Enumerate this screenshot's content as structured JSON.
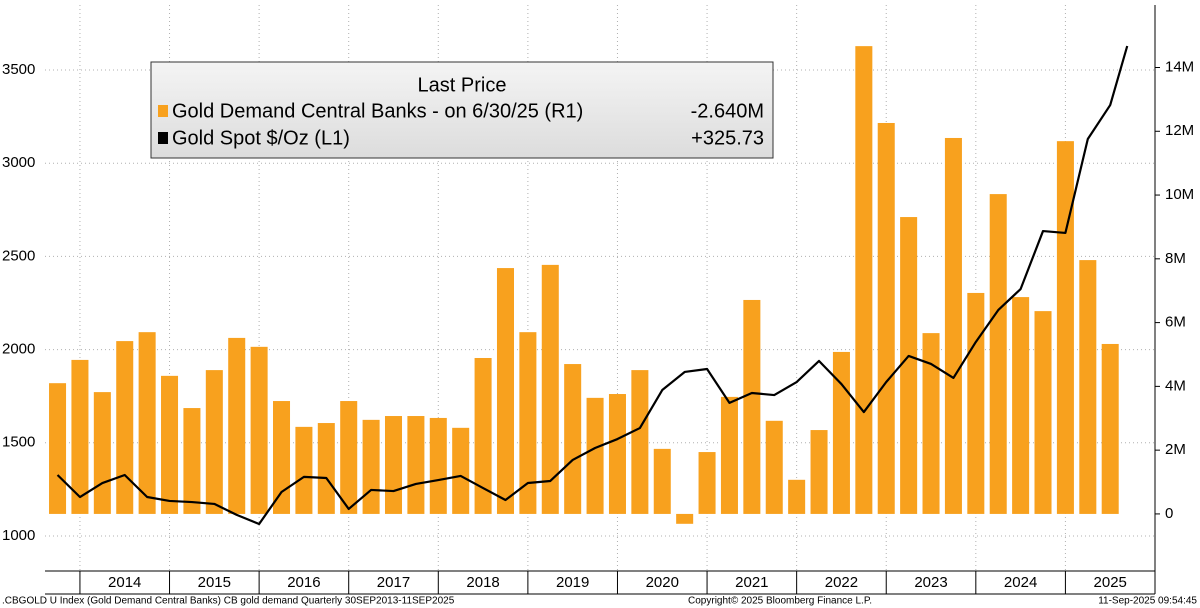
{
  "chart_data": {
    "type": "bar-line",
    "legend_title": "Last Price",
    "x": [
      2013.75,
      2014,
      2014.25,
      2014.5,
      2014.75,
      2015,
      2015.25,
      2015.5,
      2015.75,
      2016,
      2016.25,
      2016.5,
      2016.75,
      2017,
      2017.25,
      2017.5,
      2017.75,
      2018,
      2018.25,
      2018.5,
      2018.75,
      2019,
      2019.25,
      2019.5,
      2019.75,
      2020,
      2020.25,
      2020.5,
      2020.75,
      2021,
      2021.25,
      2021.5,
      2021.75,
      2022,
      2022.25,
      2022.5,
      2022.75,
      2023,
      2023.25,
      2023.5,
      2023.75,
      2024,
      2024.25,
      2024.5,
      2024.75,
      2025,
      2025.25,
      2025.5,
      2025.69
    ],
    "xlim": [
      2013.61,
      2026.0
    ],
    "xticks": [
      {
        "value": 2014,
        "label": "2014"
      },
      {
        "value": 2015,
        "label": "2015"
      },
      {
        "value": 2016,
        "label": "2016"
      },
      {
        "value": 2017,
        "label": "2017"
      },
      {
        "value": 2018,
        "label": "2018"
      },
      {
        "value": 2019,
        "label": "2019"
      },
      {
        "value": 2020,
        "label": "2020"
      },
      {
        "value": 2021,
        "label": "2021"
      },
      {
        "value": 2022,
        "label": "2022"
      },
      {
        "value": 2023,
        "label": "2023"
      },
      {
        "value": 2024,
        "label": "2024"
      },
      {
        "value": 2025,
        "label": "2025"
      }
    ],
    "ylim": [
      812,
      3849
    ],
    "yticks": [
      1000,
      1500,
      2000,
      2500,
      3000,
      3500
    ],
    "y2lim": [
      -1.79,
      15.96
    ],
    "y2ticks": [
      0,
      {
        "value": 2,
        "label": "2M"
      },
      {
        "value": 4,
        "label": "4M"
      },
      {
        "value": 6,
        "label": "6M"
      },
      {
        "value": 8,
        "label": "8M"
      },
      {
        "value": 10,
        "label": "10M"
      },
      {
        "value": 12,
        "label": "12M"
      },
      {
        "value": 14,
        "label": "14M"
      }
    ],
    "grid": true,
    "series": [
      {
        "name": "Gold Demand Central Banks -  on 6/30/25  (R1)",
        "legend_value": "-2.640M",
        "kind": "bar",
        "axis": "y2",
        "color": "#f8a11e",
        "values": [
          4.1,
          4.83,
          3.82,
          5.42,
          5.7,
          4.33,
          3.32,
          4.51,
          5.52,
          5.24,
          3.54,
          2.73,
          2.85,
          3.54,
          2.95,
          3.07,
          3.07,
          3.01,
          2.7,
          4.89,
          7.71,
          5.7,
          7.81,
          4.7,
          3.64,
          3.76,
          4.51,
          2.04,
          -0.31,
          1.94,
          3.67,
          6.71,
          2.92,
          1.07,
          2.63,
          5.08,
          14.67,
          12.26,
          9.31,
          5.67,
          11.79,
          6.93,
          10.03,
          6.8,
          6.36,
          11.69,
          7.96,
          5.33,
          null
        ]
      },
      {
        "name": "Gold Spot $/Oz  (L1)",
        "legend_value": "+325.73",
        "kind": "line",
        "color": "#000000",
        "values": [
          1327,
          1209,
          1284,
          1327,
          1209,
          1188,
          1182,
          1172,
          1113,
          1064,
          1236,
          1317,
          1311,
          1145,
          1247,
          1241,
          1279,
          1300,
          1322,
          1257,
          1193,
          1284,
          1295,
          1408,
          1472,
          1520,
          1579,
          1783,
          1880,
          1896,
          1714,
          1767,
          1756,
          1826,
          1939,
          1815,
          1665,
          1826,
          1966,
          1923,
          1848,
          2041,
          2212,
          2325,
          2636,
          2626,
          3130,
          3312,
          3629
        ]
      }
    ],
    "footer_left": ".CBGOLD U Index (Gold Demand Central Banks) CB gold demand  Quarterly 30SEP2013-11SEP2025",
    "footer_center": "Copyright© 2025 Bloomberg Finance L.P.",
    "footer_right": "11-Sep-2025 09:54:45"
  }
}
